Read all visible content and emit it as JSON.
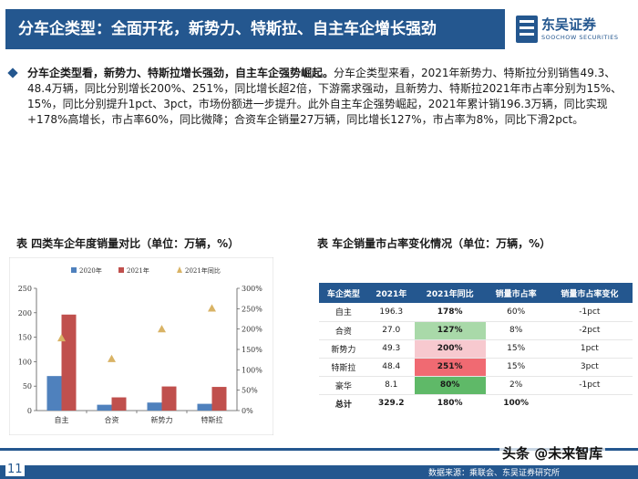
{
  "header": {
    "title": "分车企类型：全面开花，新势力、特斯拉、自主车企增长强劲",
    "logo_cn": "东吴证券",
    "logo_en": "SOOCHOW SECURITIES",
    "logo_mark_icon": "soochow-logo-icon"
  },
  "summary": {
    "bold_lead": "分车企类型看，新势力、特斯拉增长强劲，自主车企强势崛起。",
    "body": "分车企类型来看，2021年新势力、特斯拉分别销售49.3、48.4万辆，同比分别增长200%、251%，同比增长超2倍，下游需求强动，且新势力、特斯拉2021年市占率分别为15%、15%，同比分别提升1pct、3pct，市场份额进一步提升。此外自主车企强势崛起，2021年累计销196.3万辆，同比实现+178%高增长，市占率60%，同比微降；合资车企销量27万辆，同比增长127%，市占率为8%，同比下滑2pct。"
  },
  "left_table_title": "表  四类车企年度销量对比（单位：万辆，%）",
  "right_table_title": "表  车企销量市占率变化情况（单位：万辆，%）",
  "chart_data": {
    "type": "bar",
    "categories": [
      "自主",
      "合资",
      "新势力",
      "特斯拉"
    ],
    "series": [
      {
        "name": "2020年",
        "values": [
          70.6,
          11.9,
          16.4,
          13.8
        ],
        "color": "#4f81bd"
      },
      {
        "name": "2021年",
        "values": [
          196.3,
          27.0,
          49.3,
          48.4
        ],
        "color": "#c0504d"
      }
    ],
    "line_series": {
      "name": "2021年同比",
      "values": [
        178,
        127,
        200,
        251
      ],
      "color": "#d9b365",
      "marker": "triangle"
    },
    "ylim": [
      0,
      250
    ],
    "y_ticks": [
      "0",
      "50",
      "100",
      "150",
      "200",
      "250"
    ],
    "y2lim": [
      0,
      300
    ],
    "y2_ticks": [
      "0%",
      "50%",
      "100%",
      "150%",
      "200%",
      "250%",
      "300%"
    ],
    "legend_position": "top"
  },
  "share_table": {
    "headers": [
      "车企类型",
      "2021年",
      "2021年同比",
      "销量市占率",
      "销量市占率变化"
    ],
    "rows": [
      {
        "type": "自主",
        "sales": "196.3",
        "yoy": "178%",
        "share": "60%",
        "change": "-1pct",
        "yoy_bg": "#ffffff"
      },
      {
        "type": "合资",
        "sales": "27.0",
        "yoy": "127%",
        "share": "8%",
        "change": "-2pct",
        "yoy_bg": "#a9d9a9"
      },
      {
        "type": "新势力",
        "sales": "49.3",
        "yoy": "200%",
        "share": "15%",
        "change": "1pct",
        "yoy_bg": "#f7c9cf"
      },
      {
        "type": "特斯拉",
        "sales": "48.4",
        "yoy": "251%",
        "share": "15%",
        "change": "3pct",
        "yoy_bg": "#f06a72"
      },
      {
        "type": "豪华",
        "sales": "8.1",
        "yoy": "80%",
        "share": "2%",
        "change": "-1pct",
        "yoy_bg": "#5fb968"
      }
    ],
    "total": {
      "type": "总计",
      "sales": "329.2",
      "yoy": "180%",
      "share": "100%",
      "change": ""
    }
  },
  "footer": {
    "page_number": "11",
    "source": "数据来源：乘联会、东吴证券研究所",
    "watermark": "头条 @未来智库"
  }
}
